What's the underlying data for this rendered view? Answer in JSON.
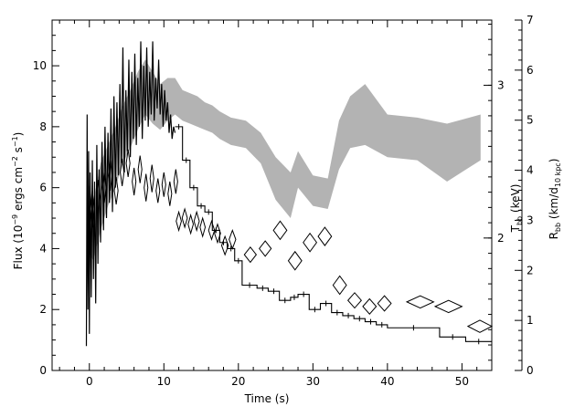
{
  "chart_data": {
    "type": "line",
    "xlabel": "Time (s)",
    "xlim": [
      -5,
      54
    ],
    "x_ticks": [
      0,
      10,
      20,
      30,
      40,
      50
    ],
    "y_left": {
      "label_main": "Flux (10",
      "label_exp1": "−9",
      "label_mid": " ergs cm",
      "label_exp2": "−2",
      "label_mid2": " s",
      "label_exp3": "−1",
      "label_end": ")",
      "lim": [
        0,
        11.5
      ],
      "ticks": [
        0,
        2,
        4,
        6,
        8,
        10
      ]
    },
    "y_right_temp": {
      "label_main": "T",
      "label_sub": "bb",
      "label_end": " (keV)",
      "ticks": [
        2,
        3
      ],
      "tick_frac": [
        0.378,
        0.814
      ]
    },
    "y_right_radius": {
      "label_main": "R",
      "label_sub1": "bb",
      "label_mid": " (km/d",
      "label_sub2": "10 kpc",
      "label_end": ")",
      "lim": [
        0,
        7
      ],
      "ticks": [
        0,
        1,
        2,
        3,
        4,
        5,
        6,
        7
      ]
    },
    "series": [
      {
        "kind": "histogram",
        "color": "#000000",
        "steps": [
          [
            11.5,
            12.5,
            8.0
          ],
          [
            12.5,
            13.5,
            6.9
          ],
          [
            13.5,
            14.5,
            6.0
          ],
          [
            14.5,
            15.5,
            5.4
          ],
          [
            15.5,
            16.5,
            5.2
          ],
          [
            16.5,
            17.5,
            4.6
          ],
          [
            17.5,
            18.5,
            4.2
          ],
          [
            18.5,
            19.5,
            4.0
          ],
          [
            19.5,
            20.5,
            3.6
          ],
          [
            20.5,
            22.5,
            2.8
          ],
          [
            22.5,
            24.0,
            2.7
          ],
          [
            24.0,
            25.5,
            2.6
          ],
          [
            25.5,
            27.0,
            2.3
          ],
          [
            27.0,
            28.0,
            2.4
          ],
          [
            28.0,
            29.5,
            2.5
          ],
          [
            29.5,
            31.0,
            2.0
          ],
          [
            31.0,
            32.5,
            2.2
          ],
          [
            32.5,
            34.0,
            1.9
          ],
          [
            34.0,
            35.5,
            1.8
          ],
          [
            35.5,
            37.0,
            1.7
          ],
          [
            37.0,
            38.5,
            1.6
          ],
          [
            38.5,
            40.0,
            1.5
          ],
          [
            40.0,
            47.0,
            1.4
          ],
          [
            47.0,
            50.5,
            1.1
          ],
          [
            50.5,
            54.0,
            0.95
          ]
        ],
        "early_lightcurve": [
          [
            -0.4,
            0.8
          ],
          [
            -0.3,
            8.4
          ],
          [
            -0.2,
            2.0
          ],
          [
            -0.1,
            7.2
          ],
          [
            0.0,
            1.2
          ],
          [
            0.1,
            6.5
          ],
          [
            0.25,
            2.4
          ],
          [
            0.4,
            6.9
          ],
          [
            0.55,
            3.0
          ],
          [
            0.7,
            6.2
          ],
          [
            0.85,
            2.2
          ],
          [
            1.0,
            7.4
          ],
          [
            1.15,
            3.5
          ],
          [
            1.3,
            6.6
          ],
          [
            1.5,
            4.2
          ],
          [
            1.7,
            7.5
          ],
          [
            1.9,
            4.6
          ],
          [
            2.1,
            8.0
          ],
          [
            2.3,
            5.0
          ],
          [
            2.5,
            7.8
          ],
          [
            2.7,
            5.5
          ],
          [
            2.9,
            8.6
          ],
          [
            3.1,
            5.2
          ],
          [
            3.3,
            9.0
          ],
          [
            3.5,
            6.0
          ],
          [
            3.7,
            8.8
          ],
          [
            3.9,
            6.4
          ],
          [
            4.1,
            9.4
          ],
          [
            4.3,
            6.8
          ],
          [
            4.5,
            10.6
          ],
          [
            4.7,
            6.5
          ],
          [
            4.9,
            9.2
          ],
          [
            5.1,
            7.2
          ],
          [
            5.3,
            10.2
          ],
          [
            5.5,
            7.0
          ],
          [
            5.7,
            9.8
          ],
          [
            5.9,
            7.6
          ],
          [
            6.1,
            10.4
          ],
          [
            6.3,
            7.4
          ],
          [
            6.5,
            9.6
          ],
          [
            6.7,
            8.0
          ],
          [
            6.9,
            10.8
          ],
          [
            7.1,
            7.6
          ],
          [
            7.3,
            10.0
          ],
          [
            7.5,
            8.2
          ],
          [
            7.7,
            10.6
          ],
          [
            7.9,
            8.0
          ],
          [
            8.1,
            9.8
          ],
          [
            8.3,
            8.4
          ],
          [
            8.5,
            10.8
          ],
          [
            8.7,
            8.2
          ],
          [
            8.9,
            9.6
          ],
          [
            9.1,
            8.6
          ],
          [
            9.3,
            10.2
          ],
          [
            9.5,
            8.4
          ],
          [
            9.7,
            9.4
          ],
          [
            9.9,
            8.0
          ],
          [
            10.1,
            9.2
          ],
          [
            10.3,
            8.2
          ],
          [
            10.5,
            8.8
          ],
          [
            10.7,
            7.8
          ],
          [
            10.9,
            8.4
          ],
          [
            11.1,
            7.6
          ],
          [
            11.3,
            8.0
          ],
          [
            11.5,
            7.8
          ]
        ]
      },
      {
        "kind": "band",
        "color": "#b3b3b3",
        "x": [
          -0.4,
          0.5,
          1.5,
          2.5,
          3.5,
          4.5,
          5.5,
          6.5,
          7.5,
          8.5,
          9.5,
          10.5,
          11.5,
          12.5,
          13.5,
          14.5,
          15.5,
          16.5,
          17.5,
          19.0,
          21.0,
          23.0,
          25.0,
          27.0,
          28.0,
          30.0,
          32.0,
          33.5,
          35.0,
          37.0,
          40.0,
          44.0,
          48.0,
          52.5
        ],
        "upper": [
          6.5,
          5.5,
          6.8,
          7.4,
          8.0,
          8.7,
          9.2,
          9.8,
          10.2,
          9.8,
          9.4,
          9.6,
          9.6,
          9.2,
          9.1,
          9.0,
          8.8,
          8.7,
          8.5,
          8.3,
          8.2,
          7.8,
          7.0,
          6.5,
          7.2,
          6.4,
          6.3,
          8.2,
          9.0,
          9.4,
          8.4,
          8.3,
          8.1,
          8.4
        ],
        "lower": [
          4.2,
          3.6,
          4.6,
          5.4,
          6.0,
          6.8,
          7.3,
          7.9,
          8.4,
          8.1,
          7.9,
          8.2,
          8.4,
          8.2,
          8.1,
          8.0,
          7.9,
          7.8,
          7.6,
          7.4,
          7.3,
          6.8,
          5.6,
          5.0,
          6.0,
          5.4,
          5.3,
          6.6,
          7.3,
          7.4,
          7.0,
          6.9,
          6.2,
          6.9
        ]
      },
      {
        "kind": "diamonds",
        "color": "#000000",
        "points": [
          {
            "x": 0.4,
            "y": 5.3,
            "dx": 0.25,
            "dy": 0.6
          },
          {
            "x": 1.2,
            "y": 5.7,
            "dx": 0.25,
            "dy": 0.55
          },
          {
            "x": 2.0,
            "y": 6.0,
            "dx": 0.25,
            "dy": 0.5
          },
          {
            "x": 2.8,
            "y": 6.4,
            "dx": 0.25,
            "dy": 0.5
          },
          {
            "x": 3.6,
            "y": 5.9,
            "dx": 0.25,
            "dy": 0.45
          },
          {
            "x": 4.4,
            "y": 6.5,
            "dx": 0.25,
            "dy": 0.45
          },
          {
            "x": 5.2,
            "y": 6.8,
            "dx": 0.25,
            "dy": 0.45
          },
          {
            "x": 6.0,
            "y": 6.2,
            "dx": 0.25,
            "dy": 0.45
          },
          {
            "x": 6.8,
            "y": 6.6,
            "dx": 0.25,
            "dy": 0.45
          },
          {
            "x": 7.6,
            "y": 6.0,
            "dx": 0.25,
            "dy": 0.45
          },
          {
            "x": 8.4,
            "y": 6.3,
            "dx": 0.25,
            "dy": 0.45
          },
          {
            "x": 9.2,
            "y": 5.9,
            "dx": 0.25,
            "dy": 0.4
          },
          {
            "x": 10.0,
            "y": 6.1,
            "dx": 0.25,
            "dy": 0.4
          },
          {
            "x": 10.8,
            "y": 5.8,
            "dx": 0.25,
            "dy": 0.4
          },
          {
            "x": 11.6,
            "y": 6.2,
            "dx": 0.25,
            "dy": 0.4
          },
          {
            "x": 12.0,
            "y": 4.9,
            "dx": 0.35,
            "dy": 0.3
          },
          {
            "x": 12.8,
            "y": 5.0,
            "dx": 0.35,
            "dy": 0.3
          },
          {
            "x": 13.6,
            "y": 4.8,
            "dx": 0.35,
            "dy": 0.3
          },
          {
            "x": 14.4,
            "y": 4.9,
            "dx": 0.35,
            "dy": 0.3
          },
          {
            "x": 15.2,
            "y": 4.7,
            "dx": 0.35,
            "dy": 0.3
          },
          {
            "x": 16.4,
            "y": 4.6,
            "dx": 0.4,
            "dy": 0.3
          },
          {
            "x": 17.2,
            "y": 4.5,
            "dx": 0.4,
            "dy": 0.3
          },
          {
            "x": 18.2,
            "y": 4.1,
            "dx": 0.45,
            "dy": 0.3
          },
          {
            "x": 19.2,
            "y": 4.3,
            "dx": 0.45,
            "dy": 0.3
          },
          {
            "x": 21.6,
            "y": 3.8,
            "dx": 0.8,
            "dy": 0.25
          },
          {
            "x": 23.6,
            "y": 4.0,
            "dx": 0.8,
            "dy": 0.25
          },
          {
            "x": 25.6,
            "y": 4.6,
            "dx": 0.9,
            "dy": 0.3
          },
          {
            "x": 27.6,
            "y": 3.6,
            "dx": 0.9,
            "dy": 0.3
          },
          {
            "x": 29.6,
            "y": 4.2,
            "dx": 0.9,
            "dy": 0.3
          },
          {
            "x": 31.6,
            "y": 4.4,
            "dx": 0.9,
            "dy": 0.3
          },
          {
            "x": 33.6,
            "y": 2.8,
            "dx": 0.9,
            "dy": 0.3
          },
          {
            "x": 35.6,
            "y": 2.3,
            "dx": 0.9,
            "dy": 0.25
          },
          {
            "x": 37.6,
            "y": 2.1,
            "dx": 0.9,
            "dy": 0.25
          },
          {
            "x": 39.6,
            "y": 2.2,
            "dx": 0.9,
            "dy": 0.25
          },
          {
            "x": 44.4,
            "y": 2.25,
            "dx": 1.8,
            "dy": 0.2
          },
          {
            "x": 48.2,
            "y": 2.1,
            "dx": 1.8,
            "dy": 0.2
          },
          {
            "x": 52.4,
            "y": 1.45,
            "dx": 1.6,
            "dy": 0.2
          }
        ]
      }
    ]
  }
}
